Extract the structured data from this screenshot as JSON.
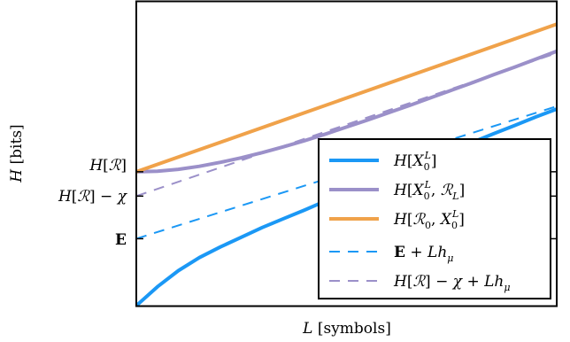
{
  "chart_data": {
    "type": "line",
    "xlabel": "L [symbols]",
    "ylabel": "H [bits]",
    "x": [
      0,
      10
    ],
    "ylim": [
      0,
      10
    ],
    "y_ticks": [
      {
        "label": "H[R]",
        "value": 4.4
      },
      {
        "label": "H[R] − χ",
        "value": 3.6
      },
      {
        "label": "E",
        "value": 2.2
      }
    ],
    "series": [
      {
        "name": "H[X0^L]",
        "style": "solid",
        "color": "#1b98f5",
        "points": [
          [
            0,
            0
          ],
          [
            0.5,
            0.62
          ],
          [
            1,
            1.15
          ],
          [
            1.5,
            1.58
          ],
          [
            2,
            1.93
          ],
          [
            2.5,
            2.25
          ],
          [
            3,
            2.57
          ],
          [
            3.5,
            2.86
          ],
          [
            4,
            3.14
          ],
          [
            4.5,
            3.44
          ],
          [
            5,
            3.71
          ],
          [
            5.5,
            4.0
          ],
          [
            6,
            4.27
          ],
          [
            6.5,
            4.55
          ],
          [
            7,
            4.83
          ],
          [
            7.5,
            5.1
          ],
          [
            8,
            5.37
          ],
          [
            8.5,
            5.65
          ],
          [
            9,
            5.92
          ],
          [
            9.5,
            6.2
          ],
          [
            10,
            6.46
          ]
        ]
      },
      {
        "name": "H[X0^L, R_L]",
        "style": "solid",
        "color": "#9b90c9",
        "points": [
          [
            0,
            4.4
          ],
          [
            0.5,
            4.42
          ],
          [
            1,
            4.48
          ],
          [
            1.5,
            4.58
          ],
          [
            2,
            4.71
          ],
          [
            2.5,
            4.86
          ],
          [
            3,
            5.03
          ],
          [
            3.5,
            5.22
          ],
          [
            4,
            5.42
          ],
          [
            4.5,
            5.64
          ],
          [
            5,
            5.87
          ],
          [
            5.5,
            6.1
          ],
          [
            6,
            6.34
          ],
          [
            6.5,
            6.58
          ],
          [
            7,
            6.83
          ],
          [
            7.5,
            7.08
          ],
          [
            8,
            7.33
          ],
          [
            8.5,
            7.59
          ],
          [
            9,
            7.84
          ],
          [
            9.5,
            8.1
          ],
          [
            10,
            8.36
          ]
        ]
      },
      {
        "name": "H[R0, X0^L]",
        "style": "solid",
        "color": "#f0a24a",
        "points": [
          [
            0,
            4.4
          ],
          [
            10,
            9.25
          ]
        ]
      },
      {
        "name": "E + L h_μ",
        "style": "dashed",
        "color": "#1b98f5",
        "points": [
          [
            0,
            2.2
          ],
          [
            10,
            6.55
          ]
        ]
      },
      {
        "name": "H[R] − χ + L h_μ",
        "style": "dashed",
        "color": "#9b90c9",
        "points": [
          [
            0,
            3.6
          ],
          [
            10,
            8.3
          ]
        ]
      }
    ],
    "legend": {
      "position": "bottom-right",
      "entries": [
        "H[X0^L]",
        "H[X0^L, R_L]",
        "H[R0, X0^L]",
        "E + L h_μ",
        "H[R] − χ + L h_μ"
      ]
    },
    "grid": false
  }
}
